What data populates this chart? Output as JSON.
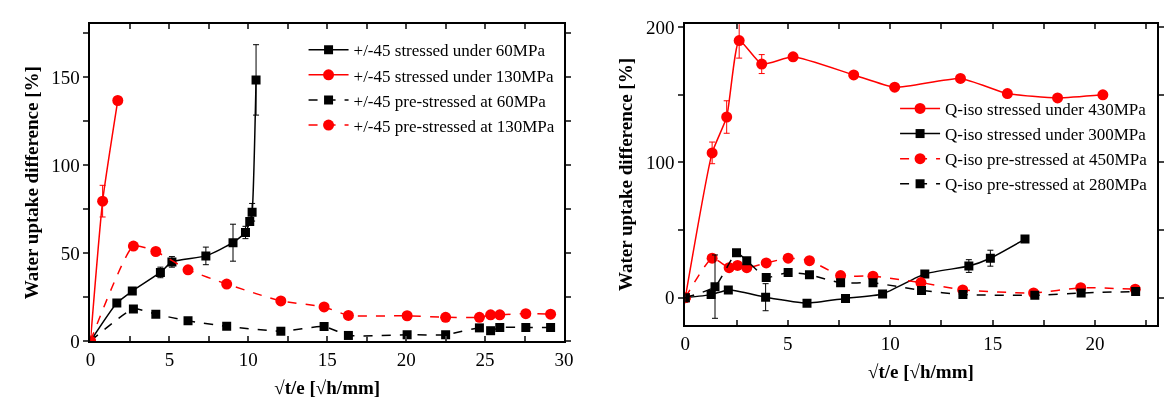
{
  "chart_data": [
    {
      "type": "line",
      "xlabel": "√t/e [√h/mm]",
      "ylabel": "Water uptake difference [%]",
      "xlim": [
        0,
        30
      ],
      "xticks": [
        0,
        {
          "value": 2.5,
          "label": null
        },
        5,
        {
          "value": 7.5,
          "label": null
        },
        10,
        {
          "value": 12.5,
          "label": null
        },
        15,
        {
          "value": 17.5,
          "label": null
        },
        20,
        {
          "value": 22.5,
          "label": null
        },
        25,
        {
          "value": 27.5,
          "label": null
        },
        30
      ],
      "ylim": [
        0,
        180
      ],
      "yticks": [
        0,
        {
          "value": 25,
          "label": null
        },
        50,
        {
          "value": 75,
          "label": null
        },
        100,
        {
          "value": 125,
          "label": null
        },
        150,
        {
          "value": 175,
          "label": null
        }
      ],
      "legend": "top right",
      "series": [
        {
          "name": "+/-45 stressed under 60MPa",
          "color": "#000000",
          "marker": "square",
          "line_style": "solid",
          "x": [
            0,
            1.67,
            2.65,
            4.43,
            5.16,
            7.31,
            9.03,
            9.82,
            10.09,
            10.24,
            10.49
          ],
          "values": [
            0,
            21.6,
            28.4,
            39,
            45,
            48.4,
            55.9,
            61.7,
            68,
            73.2,
            148.4
          ],
          "errors": [
            null,
            null,
            null,
            3,
            3,
            5,
            10.5,
            3.5,
            null,
            5,
            20
          ]
        },
        {
          "name": "+/-45 stressed under 130MPa",
          "color": "#ff0000",
          "marker": "circle",
          "line_style": "solid",
          "x": [
            0,
            0.77,
            1.73
          ],
          "values": [
            0,
            79.5,
            136.7
          ],
          "errors": [
            null,
            9,
            null
          ]
        },
        {
          "name": "+/-45 pre-stressed at 60MPa",
          "color": "#000000",
          "marker": "square",
          "line_style": "dashed",
          "x": [
            0,
            2.72,
            4.14,
            6.18,
            8.63,
            12.06,
            14.8,
            16.34,
            20.06,
            22.5,
            24.64,
            25.35,
            25.93,
            27.58,
            29.15
          ],
          "values": [
            0,
            18.3,
            15.3,
            11.5,
            8.4,
            5.6,
            8.3,
            3.2,
            3.6,
            3.6,
            7.5,
            5.9,
            7.7,
            7.7,
            7.7
          ]
        },
        {
          "name": "+/-45 pre-stressed at 130MPa",
          "color": "#ff0000",
          "marker": "circle",
          "line_style": "dashed",
          "x": [
            0,
            2.72,
            4.14,
            6.18,
            8.63,
            12.06,
            14.8,
            16.34,
            20.06,
            22.5,
            24.64,
            25.35,
            25.93,
            27.58,
            29.15
          ],
          "values": [
            0,
            54,
            50.9,
            40.5,
            32.4,
            22.8,
            19.4,
            14.6,
            14.4,
            13.5,
            13.5,
            14.9,
            14.9,
            15.6,
            15.3
          ]
        }
      ]
    },
    {
      "type": "line",
      "xlabel": "√t/e [√h/mm]",
      "ylabel": "Water uptake difference [%]",
      "xlim": [
        0,
        23
      ],
      "xticks": [
        0,
        {
          "value": 2.5,
          "label": null
        },
        5,
        {
          "value": 7.5,
          "label": null
        },
        10,
        {
          "value": 12.5,
          "label": null
        },
        15,
        {
          "value": 17.5,
          "label": null
        },
        20,
        {
          "value": 22.5,
          "label": null
        }
      ],
      "ylim": [
        -20,
        202
      ],
      "yticks": [
        0,
        {
          "value": 50,
          "label": null
        },
        100,
        {
          "value": 150,
          "label": null
        },
        200
      ],
      "legend": "right",
      "series": [
        {
          "name": "Q-iso stressed under 430MPa",
          "color": "#ff0000",
          "marker": "circle",
          "line_style": "solid",
          "x": [
            0,
            1.31,
            2.02,
            2.63,
            3.73,
            5.26,
            8.22,
            10.22,
            13.43,
            15.72,
            18.17,
            20.38
          ],
          "values": [
            0,
            107,
            133.5,
            190,
            172.6,
            178,
            164.6,
            155.5,
            162,
            150.8,
            147.6,
            149.9
          ],
          "errors": [
            null,
            8,
            12,
            13,
            7,
            null,
            null,
            null,
            null,
            null,
            null,
            null
          ]
        },
        {
          "name": "Q-iso stressed under 300MPa",
          "color": "#000000",
          "marker": "square",
          "line_style": "solid",
          "x": [
            0,
            1.26,
            2.1,
            3.92,
            5.94,
            7.82,
            9.63,
            11.69,
            13.84,
            14.89,
            16.58
          ],
          "values": [
            0,
            2.3,
            5.8,
            0.4,
            -4,
            -0.5,
            2.8,
            17.6,
            23.4,
            29.2,
            43.3
          ],
          "errors": [
            null,
            null,
            null,
            10,
            null,
            null,
            null,
            null,
            4.7,
            5.9,
            null
          ]
        },
        {
          "name": "Q-iso pre-stressed at 450MPa",
          "color": "#ff0000",
          "marker": "circle",
          "line_style": "dashed",
          "x": [
            0,
            1.31,
            2.14,
            2.55,
            3.0,
            3.95,
            5.02,
            6.06,
            7.58,
            9.16,
            11.5,
            13.54,
            17.0,
            19.3,
            21.96
          ],
          "values": [
            0,
            29.2,
            22.2,
            23.9,
            22.2,
            25.7,
            29.2,
            27.4,
            16.4,
            15.9,
            11.2,
            5.8,
            3.5,
            7.4,
            6.3
          ]
        },
        {
          "name": "Q-iso pre-stressed at 280MPa",
          "color": "#000000",
          "marker": "square",
          "line_style": "dashed",
          "x": [
            0,
            1.45,
            2.5,
            3.0,
            3.95,
            5.02,
            6.06,
            7.58,
            9.16,
            11.53,
            13.55,
            17.06,
            19.32,
            21.98
          ],
          "values": [
            0,
            8.2,
            33.2,
            27.4,
            15,
            18.7,
            16.9,
            11,
            11,
            5.4,
            2.3,
            1.8,
            3.5,
            4.6
          ],
          "errors": [
            null,
            23.4,
            null,
            null,
            null,
            null,
            null,
            null,
            null,
            null,
            null,
            null,
            null,
            null
          ]
        }
      ]
    }
  ]
}
